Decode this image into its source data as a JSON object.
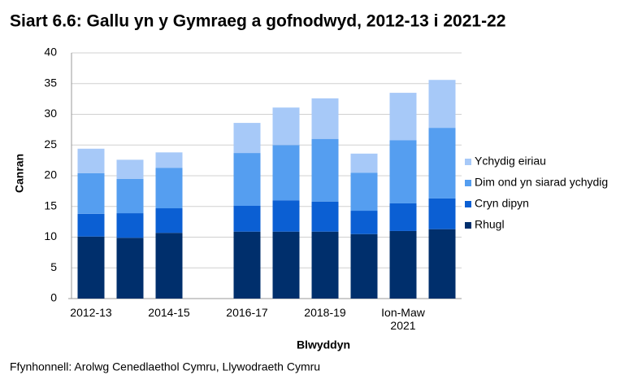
{
  "chart_data": {
    "type": "stacked_bar",
    "title": "Siart 6.6: Gallu yn y Gymraeg a gofnodwyd, 2012-13 i 2021-22",
    "x_label": "Blwyddyn",
    "y_label": "Canran",
    "source": "Ffynhonnell: Arolwg Cenedlaethol Cymru, Llywodraeth Cymru",
    "categories": [
      "2012-13",
      null,
      "2014-15",
      null,
      "2016-17",
      null,
      "2018-19",
      null,
      "Ion-Maw 2021",
      null
    ],
    "series": [
      {
        "name": "Rhugl",
        "color": "#002f6c",
        "values": [
          10.1,
          9.9,
          10.7,
          null,
          10.9,
          10.9,
          10.9,
          10.5,
          11.0,
          11.3
        ]
      },
      {
        "name": "Cryn dipyn",
        "color": "#0b5fd3",
        "values": [
          3.7,
          4.0,
          4.0,
          null,
          4.2,
          5.1,
          4.9,
          3.8,
          4.5,
          5.0
        ]
      },
      {
        "name": "Dim ond yn siarad ychydig",
        "color": "#559ef0",
        "values": [
          6.6,
          5.6,
          6.6,
          null,
          8.6,
          9.0,
          10.2,
          6.2,
          10.3,
          11.5
        ]
      },
      {
        "name": "Ychydig eiriau",
        "color": "#a7c9f8",
        "values": [
          4.0,
          3.1,
          2.5,
          null,
          4.9,
          6.1,
          6.6,
          3.1,
          7.7,
          7.8
        ]
      }
    ],
    "ylim": [
      0,
      40
    ],
    "yticks": [
      0,
      5,
      10,
      15,
      20,
      25,
      30,
      35,
      40
    ],
    "grid": true,
    "legend": "right"
  }
}
